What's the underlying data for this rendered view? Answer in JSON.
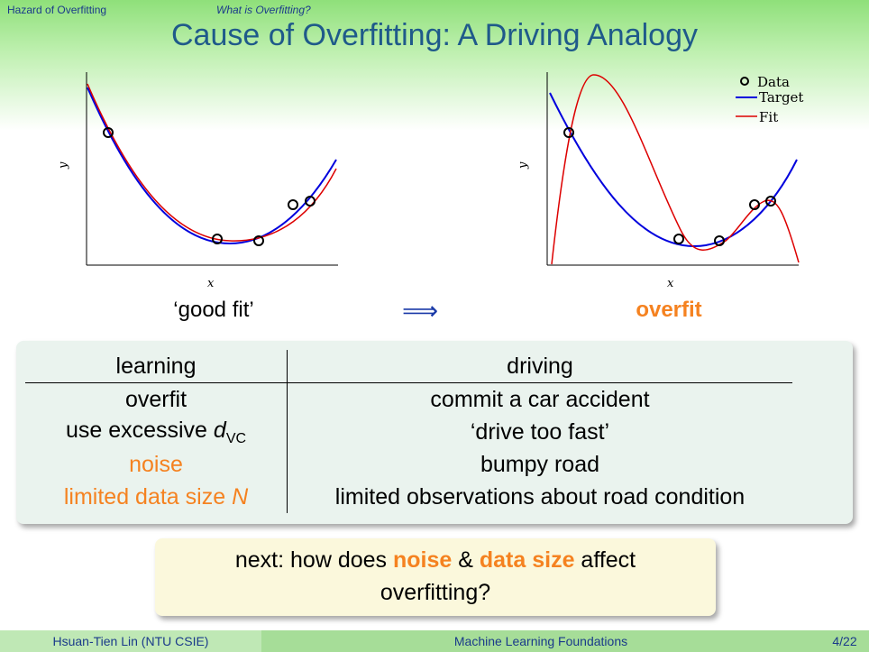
{
  "nav": {
    "section": "Hazard of Overfitting",
    "subsection": "What is Overfitting?"
  },
  "title": "Cause of Overfitting: A Driving Analogy",
  "plots": {
    "left": {
      "xlabel": "x",
      "ylabel": "y",
      "caption": "‘good fit’"
    },
    "right": {
      "xlabel": "x",
      "ylabel": "y",
      "caption": "overfit",
      "legend": {
        "data": "Data",
        "target": "Target",
        "fit": "Fit"
      }
    }
  },
  "arrow": "⟹",
  "table": {
    "headers": {
      "learning": "learning",
      "driving": "driving"
    },
    "rows": [
      {
        "learning": "overfit",
        "driving": "commit a car accident"
      },
      {
        "learning_prefix": "use excessive ",
        "learning_d": "d",
        "learning_sub": "VC",
        "driving": "‘drive too fast’"
      },
      {
        "learning": "noise",
        "driving": "bumpy road"
      },
      {
        "learning": "limited data size ",
        "learning_n": "N",
        "driving": "limited observations about road condition"
      }
    ]
  },
  "next": {
    "part1": "next: how does ",
    "noise": "noise",
    "amp": " & ",
    "data_size": "data size",
    "part2": " affect",
    "line2": "overfitting?"
  },
  "footer": {
    "author": "Hsuan-Tien Lin  (NTU CSIE)",
    "course": "Machine Learning Foundations",
    "page": "4/22"
  },
  "colors": {
    "target": "#0000dd",
    "fit": "#dd0000",
    "highlight": "#f58220",
    "title": "#1f5a8a"
  }
}
